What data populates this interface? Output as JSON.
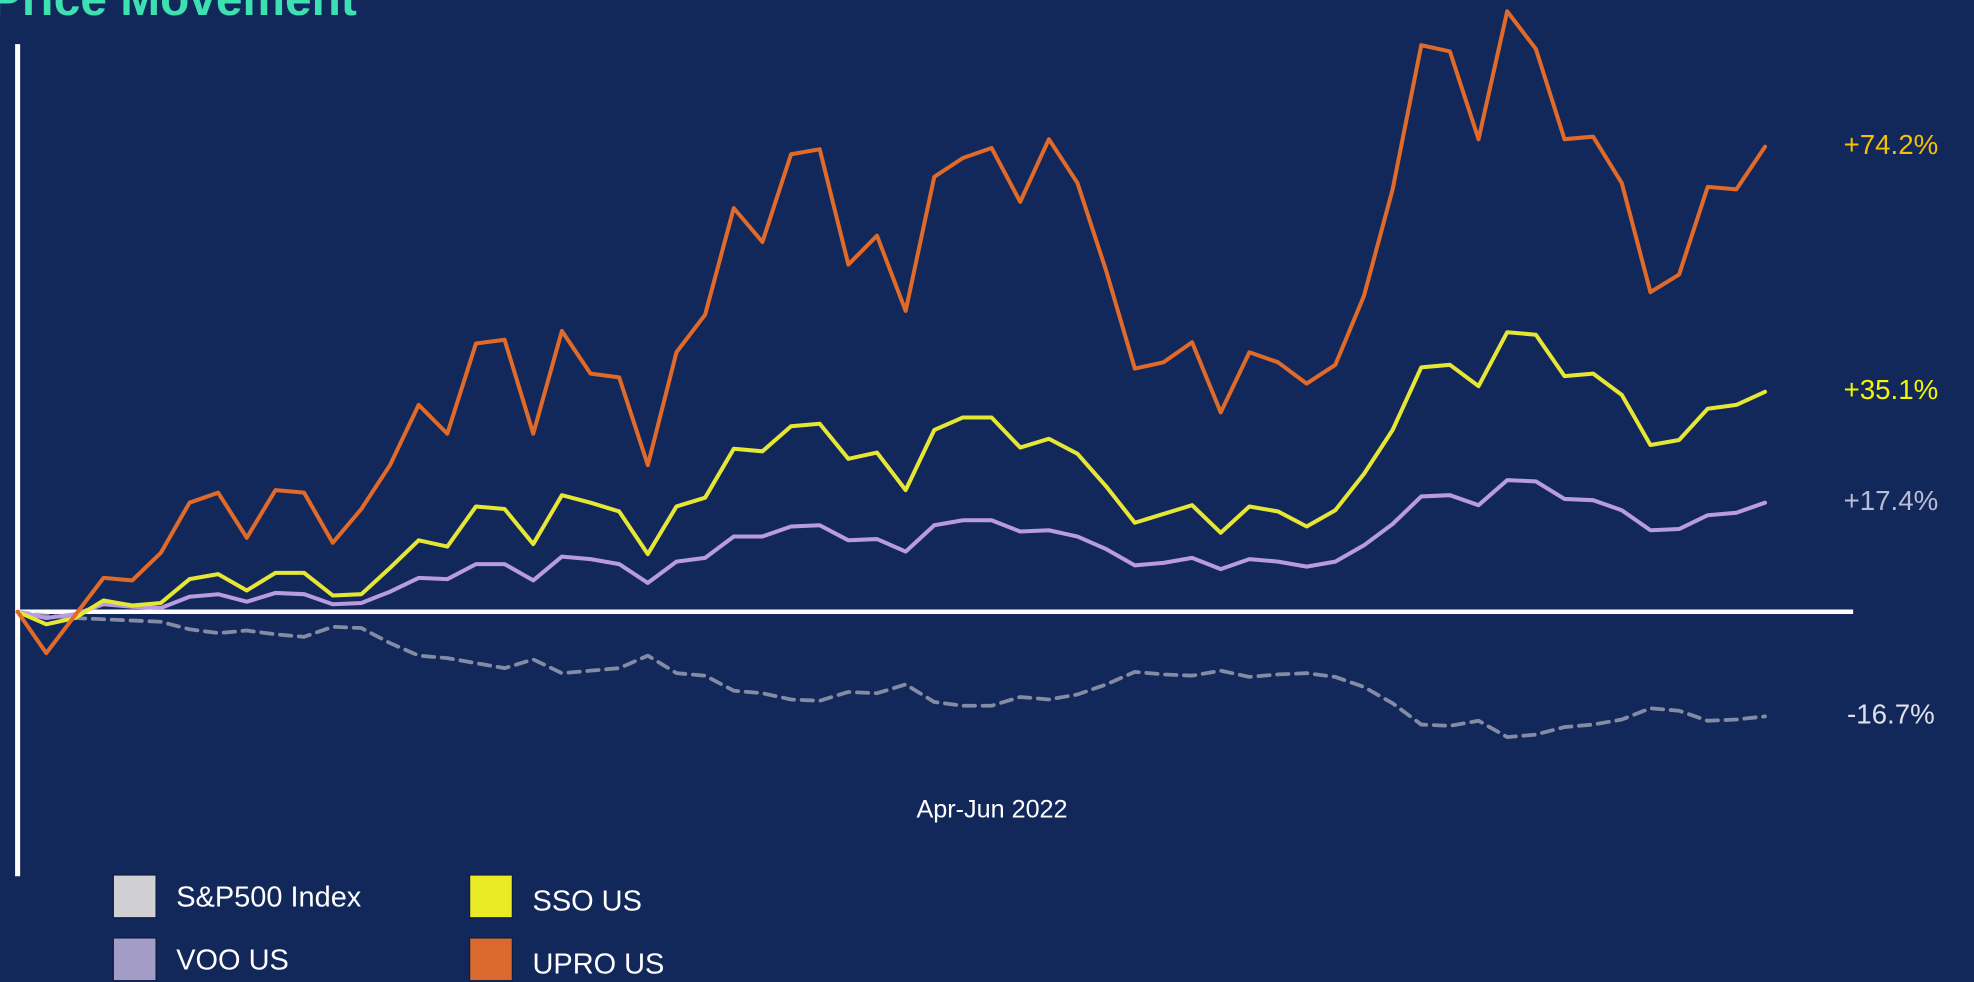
{
  "chart_data": {
    "type": "line",
    "title": "Price Movement",
    "x_label": "Apr-Jun 2022",
    "ylim": [
      -42,
      96
    ],
    "series": [
      {
        "name": "S&P500 Index",
        "color": "#a9adbd",
        "swatch_color": "#d0cfd3",
        "label_color": "#dfe0ea",
        "dashed": true,
        "end_label": "-16.7%",
        "values": [
          0,
          -0.6,
          -1,
          -1.2,
          -1.4,
          -1.6,
          -2.8,
          -3.4,
          -3,
          -3.6,
          -4,
          -2.4,
          -2.6,
          -5,
          -7,
          -7.4,
          -8.2,
          -9,
          -7.6,
          -9.8,
          -9.4,
          -9,
          -7,
          -9.8,
          -10.2,
          -12.6,
          -13,
          -14,
          -14.2,
          -12.8,
          -13,
          -11.6,
          -14.4,
          -15,
          -15,
          -13.6,
          -14,
          -13.2,
          -11.6,
          -9.6,
          -10,
          -10.2,
          -9.4,
          -10.4,
          -10,
          -9.8,
          -10.4,
          -12,
          -14.6,
          -18,
          -18.2,
          -17.4,
          -20,
          -19.6,
          -18.4,
          -18,
          -17.2,
          -15.4,
          -15.8,
          -17.4,
          -17.2,
          -16.7
        ]
      },
      {
        "name": "VOO US",
        "color": "#b99be2",
        "swatch_color": "#a39cc6",
        "label_color": "#b8bcd8",
        "dashed": false,
        "end_label": "+17.4%",
        "values": [
          0,
          -1,
          -0.4,
          1.2,
          0.8,
          0.6,
          2.4,
          2.8,
          1.6,
          3,
          2.8,
          1.2,
          1.4,
          3.2,
          5.4,
          5.2,
          7.6,
          7.6,
          5,
          8.8,
          8.4,
          7.6,
          4.6,
          8,
          8.6,
          12,
          12,
          13.6,
          13.8,
          11.4,
          11.6,
          9.6,
          13.8,
          14.6,
          14.6,
          12.8,
          13,
          12,
          10,
          7.4,
          7.8,
          8.6,
          6.8,
          8.4,
          8,
          7.2,
          8,
          10.6,
          14,
          18.4,
          18.6,
          17,
          21,
          20.8,
          18,
          17.8,
          16.2,
          13,
          13.2,
          15.4,
          15.8,
          17.4
        ]
      },
      {
        "name": "SSO US",
        "color": "#e6e634",
        "swatch_color": "#eaea25",
        "label_color": "#f5f500",
        "dashed": false,
        "end_label": "+35.1%",
        "values": [
          0,
          -2,
          -1,
          1.8,
          1,
          1.4,
          5.2,
          6,
          3.4,
          6.2,
          6.2,
          2.6,
          2.8,
          7,
          11.4,
          10.4,
          16.8,
          16.4,
          10.8,
          18.6,
          17.4,
          16,
          9.2,
          16.8,
          18.2,
          26,
          25.6,
          29.6,
          30,
          24.4,
          25.4,
          19.4,
          29,
          31,
          31,
          26.2,
          27.6,
          25.2,
          20,
          14.2,
          15.6,
          17,
          12.6,
          16.8,
          16,
          13.6,
          16.2,
          22,
          29,
          39,
          39.4,
          36,
          44.6,
          44.2,
          37.6,
          38,
          34.6,
          26.6,
          27.4,
          32.4,
          33,
          35.1
        ]
      },
      {
        "name": "UPRO US",
        "color": "#e06a2a",
        "swatch_color": "#d9692e",
        "label_color": "#f5c000",
        "dashed": false,
        "end_label": "+74.2%",
        "values": [
          0,
          -6.6,
          -0.6,
          5.4,
          5,
          9.4,
          17.4,
          19,
          11.8,
          19.4,
          19,
          11,
          16.4,
          23.4,
          33,
          28.4,
          42.8,
          43.4,
          28.4,
          44.8,
          38,
          37.4,
          23.4,
          41.4,
          47.4,
          64.4,
          59,
          73,
          73.8,
          55.4,
          60,
          48,
          69.4,
          72.4,
          74,
          65.4,
          75.4,
          68.4,
          54.4,
          38.8,
          39.8,
          43,
          31.8,
          41.4,
          39.8,
          36.4,
          39.4,
          50.4,
          67.4,
          90.4,
          89.4,
          75.4,
          95.8,
          89.8,
          75.4,
          75.8,
          68.4,
          51,
          53.8,
          67.8,
          67.4,
          74.2
        ]
      }
    ]
  }
}
